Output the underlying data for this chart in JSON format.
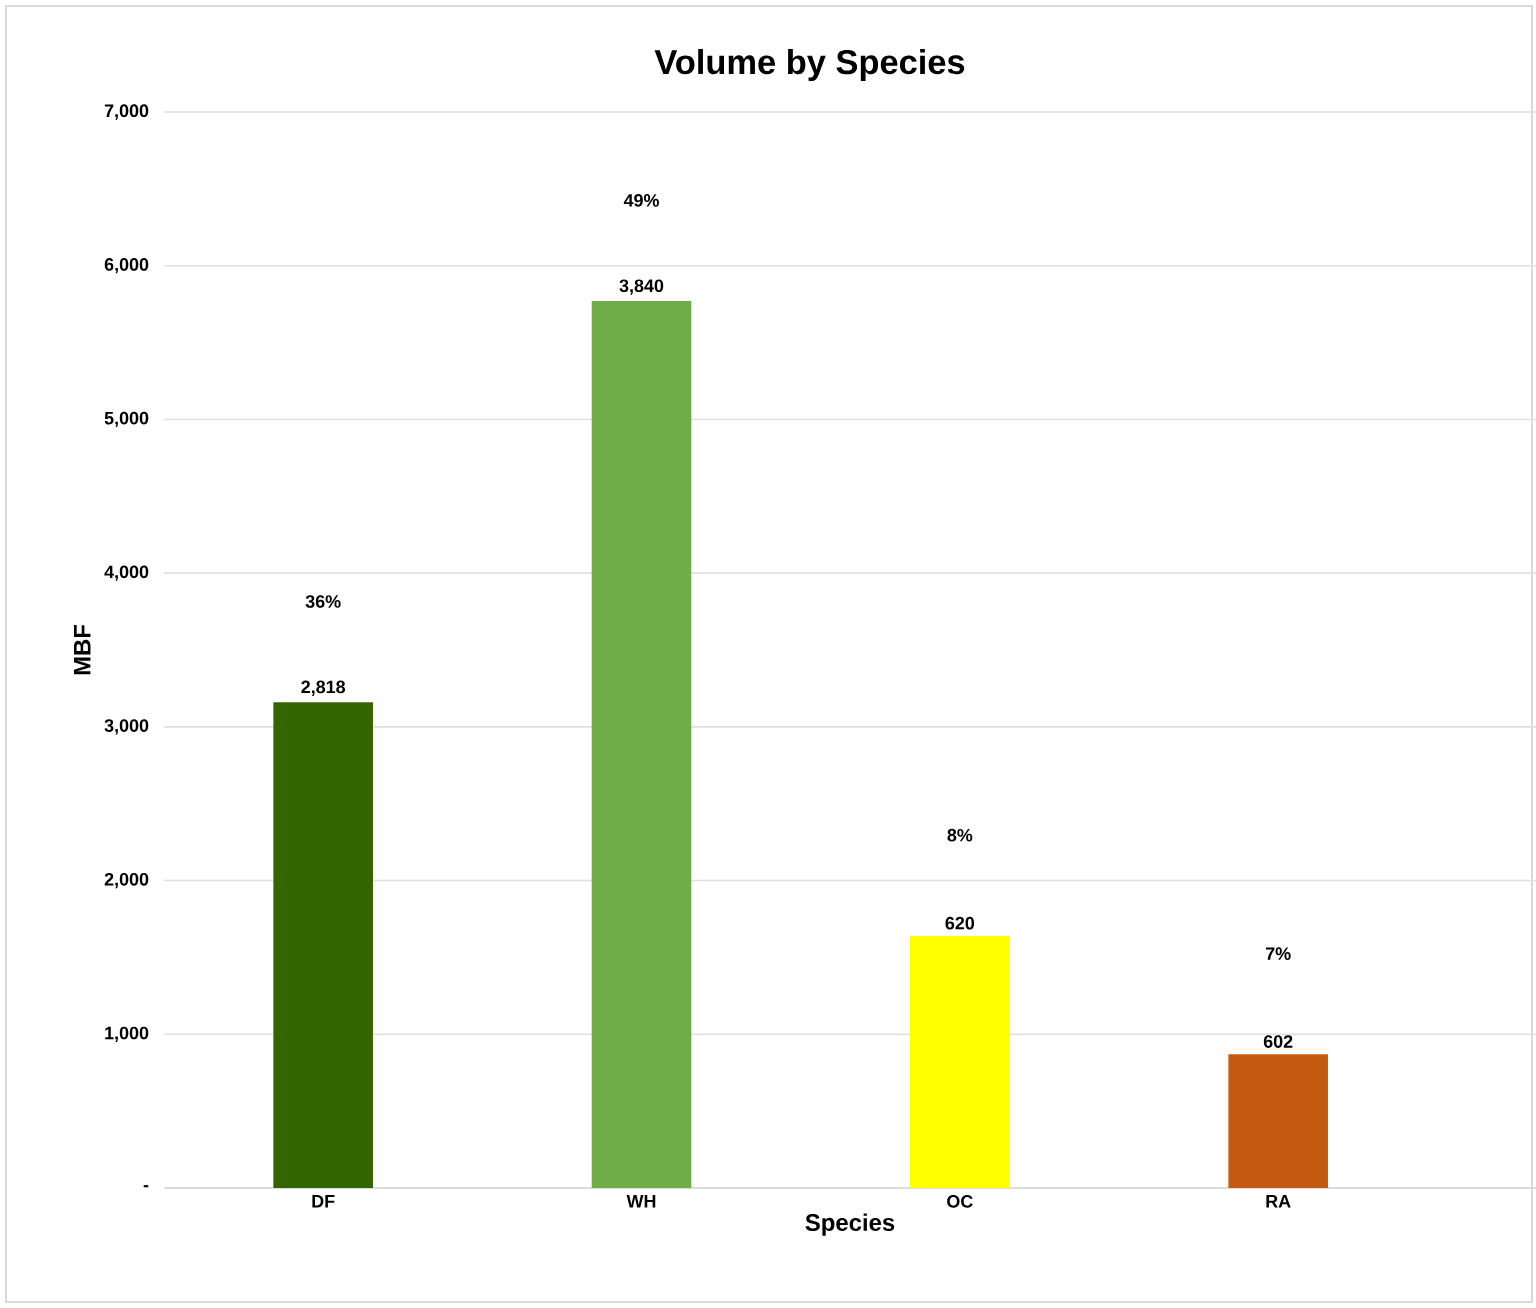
{
  "chart_data": {
    "type": "bar",
    "title": "Volume by Species",
    "xlabel": "Species",
    "ylabel": "MBF",
    "categories": [
      "DF",
      "WH",
      "OC",
      "RA"
    ],
    "values": [
      3160,
      5770,
      1640,
      870
    ],
    "colors": [
      "#336600",
      "#70ad47",
      "#ffff00",
      "#c55a11"
    ],
    "annotations": [
      "2,818",
      "3,840",
      "620",
      "602",
      "36%",
      "49%",
      "8%",
      "7%"
    ],
    "ylim": [
      0,
      7000
    ],
    "yticks": [
      {
        "value": 0,
        "label": "-"
      },
      {
        "value": 1000,
        "label": "1,000"
      },
      {
        "value": 2000,
        "label": "2,000"
      },
      {
        "value": 3000,
        "label": "3,000"
      },
      {
        "value": 4000,
        "label": "4,000"
      },
      {
        "value": 5000,
        "label": "5,000"
      },
      {
        "value": 6000,
        "label": "6,000"
      },
      {
        "value": 7000,
        "label": "7,000"
      }
    ],
    "grid": "y",
    "legend": false
  }
}
